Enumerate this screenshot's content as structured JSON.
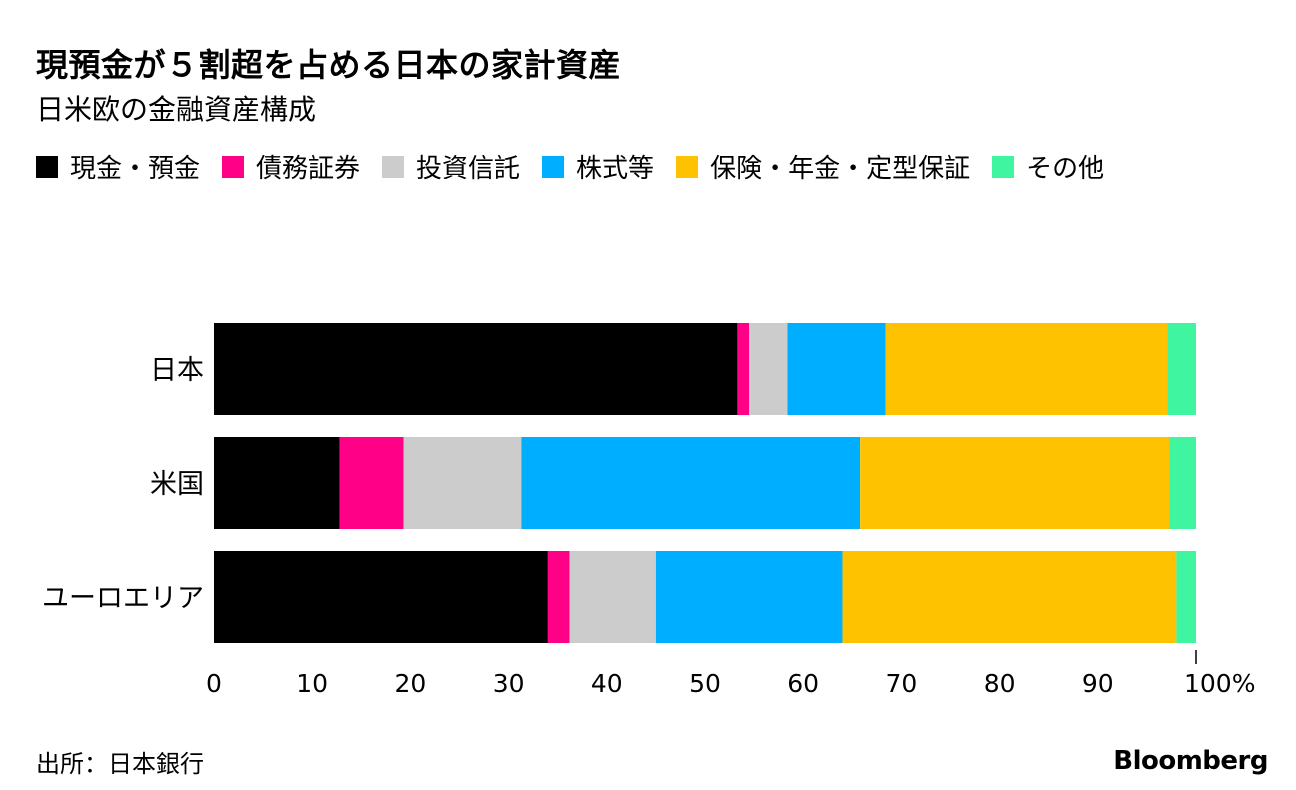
{
  "title": "現預金が５割超を占める日本の家計資産",
  "subtitle": "日米欧の金融資産構成",
  "source": "出所：日本銀行",
  "brand": "Bloomberg",
  "colors": {
    "cash": "#000000",
    "bonds": "#ff0087",
    "funds": "#cccccc",
    "equity": "#00aeff",
    "insurance": "#ffc200",
    "other": "#3ff5a0"
  },
  "chart_data": {
    "type": "bar",
    "orientation": "horizontal",
    "stacked": true,
    "categories": [
      "日本",
      "米国",
      "ユーロエリア"
    ],
    "series": [
      {
        "name": "現金・預金",
        "color": "#000000",
        "values": [
          53.3,
          12.8,
          34.0
        ]
      },
      {
        "name": "債務証券",
        "color": "#ff0087",
        "values": [
          1.2,
          6.5,
          2.2
        ]
      },
      {
        "name": "投資信託",
        "color": "#cccccc",
        "values": [
          3.9,
          12.0,
          8.8
        ]
      },
      {
        "name": "株式等",
        "color": "#00aeff",
        "values": [
          10.0,
          34.5,
          19.0
        ]
      },
      {
        "name": "保険・年金・定型保証",
        "color": "#ffc200",
        "values": [
          28.7,
          31.5,
          34.0
        ]
      },
      {
        "name": "その他",
        "color": "#3ff5a0",
        "values": [
          2.9,
          2.7,
          2.0
        ]
      }
    ],
    "xlim": [
      0,
      100
    ],
    "xticks": [
      "0",
      "10",
      "20",
      "30",
      "40",
      "50",
      "60",
      "70",
      "80",
      "90",
      "100%"
    ],
    "legend_position": "top"
  }
}
